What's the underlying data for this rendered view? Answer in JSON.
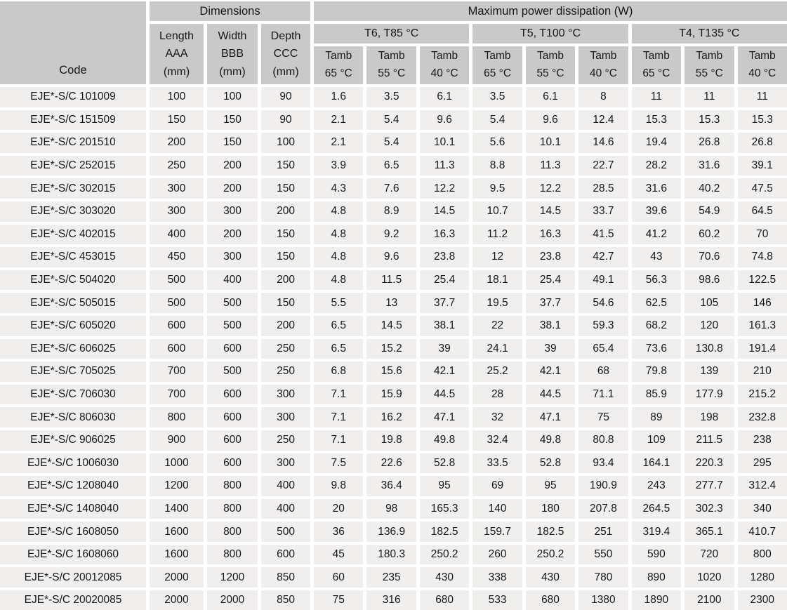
{
  "colors": {
    "header_bg": "#c9c9c9",
    "cell_bg": "#f0efed",
    "gap": "#ffffff",
    "text": "#161616"
  },
  "table": {
    "header": {
      "code": "Code",
      "dimensions": "Dimensions",
      "max_power": "Maximum power dissipation (W)",
      "dim_cols": [
        {
          "line1": "Length",
          "line2": "AAA",
          "line3": "(mm)"
        },
        {
          "line1": "Width",
          "line2": "BBB",
          "line3": "(mm)"
        },
        {
          "line1": "Depth",
          "line2": "CCC",
          "line3": "(mm)"
        }
      ],
      "temp_groups": [
        "T6, T85 °C",
        "T5, T100 °C",
        "T4, T135 °C"
      ],
      "tamb_label": "Tamb",
      "tamb_temps": [
        "65 °C",
        "55 °C",
        "40 °C"
      ]
    },
    "rows": [
      {
        "code": "EJE*-S/C 101009",
        "values": [
          "100",
          "100",
          "90",
          "1.6",
          "3.5",
          "6.1",
          "3.5",
          "6.1",
          "8",
          "11",
          "11",
          "11"
        ]
      },
      {
        "code": "EJE*-S/C 151509",
        "values": [
          "150",
          "150",
          "90",
          "2.1",
          "5.4",
          "9.6",
          "5.4",
          "9.6",
          "12.4",
          "15.3",
          "15.3",
          "15.3"
        ]
      },
      {
        "code": "EJE*-S/C 201510",
        "values": [
          "200",
          "150",
          "100",
          "2.1",
          "5.4",
          "10.1",
          "5.6",
          "10.1",
          "14.6",
          "19.4",
          "26.8",
          "26.8"
        ]
      },
      {
        "code": "EJE*-S/C 252015",
        "values": [
          "250",
          "200",
          "150",
          "3.9",
          "6.5",
          "11.3",
          "8.8",
          "11.3",
          "22.7",
          "28.2",
          "31.6",
          "39.1"
        ]
      },
      {
        "code": "EJE*-S/C 302015",
        "values": [
          "300",
          "200",
          "150",
          "4.3",
          "7.6",
          "12.2",
          "9.5",
          "12.2",
          "28.5",
          "31.6",
          "40.2",
          "47.5"
        ]
      },
      {
        "code": "EJE*-S/C 303020",
        "values": [
          "300",
          "300",
          "200",
          "4.8",
          "8.9",
          "14.5",
          "10.7",
          "14.5",
          "33.7",
          "39.6",
          "54.9",
          "64.5"
        ]
      },
      {
        "code": "EJE*-S/C 402015",
        "values": [
          "400",
          "200",
          "150",
          "4.8",
          "9.2",
          "16.3",
          "11.2",
          "16.3",
          "41.5",
          "41.2",
          "60.2",
          "70"
        ]
      },
      {
        "code": "EJE*-S/C 453015",
        "values": [
          "450",
          "300",
          "150",
          "4.8",
          "9.6",
          "23.8",
          "12",
          "23.8",
          "42.7",
          "43",
          "70.6",
          "74.8"
        ]
      },
      {
        "code": "EJE*-S/C 504020",
        "values": [
          "500",
          "400",
          "200",
          "4.8",
          "11.5",
          "25.4",
          "18.1",
          "25.4",
          "49.1",
          "56.3",
          "98.6",
          "122.5"
        ]
      },
      {
        "code": "EJE*-S/C 505015",
        "values": [
          "500",
          "500",
          "150",
          "5.5",
          "13",
          "37.7",
          "19.5",
          "37.7",
          "54.6",
          "62.5",
          "105",
          "146"
        ]
      },
      {
        "code": "EJE*-S/C 605020",
        "values": [
          "600",
          "500",
          "200",
          "6.5",
          "14.5",
          "38.1",
          "22",
          "38.1",
          "59.3",
          "68.2",
          "120",
          "161.3"
        ]
      },
      {
        "code": "EJE*-S/C 606025",
        "values": [
          "600",
          "600",
          "250",
          "6.5",
          "15.2",
          "39",
          "24.1",
          "39",
          "65.4",
          "73.6",
          "130.8",
          "191.4"
        ]
      },
      {
        "code": "EJE*-S/C 705025",
        "values": [
          "700",
          "500",
          "250",
          "6.8",
          "15.6",
          "42.1",
          "25.2",
          "42.1",
          "68",
          "79.8",
          "139",
          "210"
        ]
      },
      {
        "code": "EJE*-S/C 706030",
        "values": [
          "700",
          "600",
          "300",
          "7.1",
          "15.9",
          "44.5",
          "28",
          "44.5",
          "71.1",
          "85.9",
          "177.9",
          "215.2"
        ]
      },
      {
        "code": "EJE*-S/C 806030",
        "values": [
          "800",
          "600",
          "300",
          "7.1",
          "16.2",
          "47.1",
          "32",
          "47.1",
          "75",
          "89",
          "198",
          "232.8"
        ]
      },
      {
        "code": "EJE*-S/C 906025",
        "values": [
          "900",
          "600",
          "250",
          "7.1",
          "19.8",
          "49.8",
          "32.4",
          "49.8",
          "80.8",
          "109",
          "211.5",
          "238"
        ]
      },
      {
        "code": "EJE*-S/C 1006030",
        "values": [
          "1000",
          "600",
          "300",
          "7.5",
          "22.6",
          "52.8",
          "33.5",
          "52.8",
          "93.4",
          "164.1",
          "220.3",
          "295"
        ]
      },
      {
        "code": "EJE*-S/C 1208040",
        "values": [
          "1200",
          "800",
          "400",
          "9.8",
          "36.4",
          "95",
          "69",
          "95",
          "190.9",
          "243",
          "277.7",
          "312.4"
        ]
      },
      {
        "code": "EJE*-S/C 1408040",
        "values": [
          "1400",
          "800",
          "400",
          "20",
          "98",
          "165.3",
          "140",
          "180",
          "207.8",
          "264.5",
          "302.3",
          "340"
        ]
      },
      {
        "code": "EJE*-S/C 1608050",
        "values": [
          "1600",
          "800",
          "500",
          "36",
          "136.9",
          "182.5",
          "159.7",
          "182.5",
          "251",
          "319.4",
          "365.1",
          "410.7"
        ]
      },
      {
        "code": "EJE*-S/C 1608060",
        "values": [
          "1600",
          "800",
          "600",
          "45",
          "180.3",
          "250.2",
          "260",
          "250.2",
          "550",
          "590",
          "720",
          "800"
        ]
      },
      {
        "code": "EJE*-S/C 20012085",
        "values": [
          "2000",
          "1200",
          "850",
          "60",
          "235",
          "430",
          "338",
          "430",
          "780",
          "890",
          "1020",
          "1280"
        ]
      },
      {
        "code": "EJE*-S/C 20020085",
        "values": [
          "2000",
          "2000",
          "850",
          "75",
          "316",
          "680",
          "533",
          "680",
          "1380",
          "1890",
          "2100",
          "2300"
        ]
      }
    ]
  }
}
